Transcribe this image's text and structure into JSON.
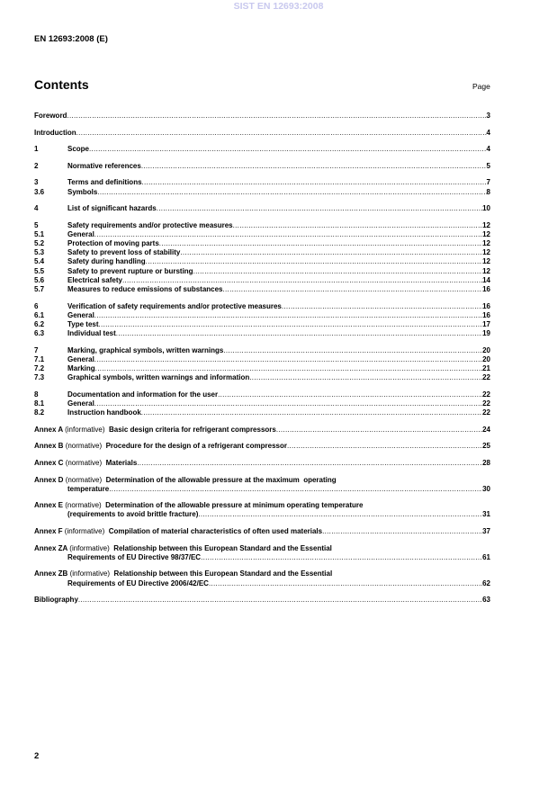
{
  "watermark": "SIST EN 12693:2008",
  "header": "EN 12693:2008 (E)",
  "contents_title": "Contents",
  "page_label": "Page",
  "groups": [
    {
      "entries": [
        {
          "num": "",
          "title": "Foreword",
          "page": "3"
        }
      ]
    },
    {
      "entries": [
        {
          "num": "",
          "title": "Introduction",
          "page": "4"
        }
      ]
    },
    {
      "entries": [
        {
          "num": "1",
          "title": "Scope",
          "page": "4"
        }
      ]
    },
    {
      "entries": [
        {
          "num": "2",
          "title": "Normative references",
          "page": "5"
        }
      ]
    },
    {
      "entries": [
        {
          "num": "3",
          "title": "Terms and definitions",
          "page": "7"
        },
        {
          "num": "3.6",
          "title": "Symbols",
          "page": "8"
        }
      ]
    },
    {
      "entries": [
        {
          "num": "4",
          "title": "List of significant hazards",
          "page": "10"
        }
      ]
    },
    {
      "entries": [
        {
          "num": "5",
          "title": "Safety requirements and/or protective measures",
          "page": "12"
        },
        {
          "num": "5.1",
          "title": "General",
          "page": "12"
        },
        {
          "num": "5.2",
          "title": "Protection of moving parts",
          "page": "12"
        },
        {
          "num": "5.3",
          "title": "Safety to prevent loss of stability",
          "page": "12"
        },
        {
          "num": "5.4",
          "title": "Safety during handling",
          "page": "12"
        },
        {
          "num": "5.5",
          "title": "Safety to prevent rupture or bursting",
          "page": "12"
        },
        {
          "num": "5.6",
          "title": "Electrical safety",
          "page": "14"
        },
        {
          "num": "5.7",
          "title": "Measures to reduce emissions of substances",
          "page": "16"
        }
      ]
    },
    {
      "entries": [
        {
          "num": "6",
          "title": "Verification of safety requirements and/or protective measures",
          "page": "16"
        },
        {
          "num": "6.1",
          "title": "General",
          "page": "16"
        },
        {
          "num": "6.2",
          "title": "Type test",
          "page": "17"
        },
        {
          "num": "6.3",
          "title": "Individual test",
          "page": "19"
        }
      ]
    },
    {
      "entries": [
        {
          "num": "7",
          "title": "Marking, graphical symbols, written warnings",
          "page": "20"
        },
        {
          "num": "7.1",
          "title": "General",
          "page": "20"
        },
        {
          "num": "7.2",
          "title": "Marking",
          "page": "21"
        },
        {
          "num": "7.3",
          "title": "Graphical symbols, written warnings and information",
          "page": "22"
        }
      ]
    },
    {
      "entries": [
        {
          "num": "8",
          "title": "Documentation and information for the user",
          "page": "22"
        },
        {
          "num": "8.1",
          "title": "General",
          "page": "22"
        },
        {
          "num": "8.2",
          "title": "Instruction handbook",
          "page": "22"
        }
      ]
    },
    {
      "entries": [
        {
          "label": "Annex A",
          "type": "(informative)",
          "title": "Basic design criteria for refrigerant compressors",
          "page": "24"
        }
      ]
    },
    {
      "entries": [
        {
          "label": "Annex B",
          "type": "(normative)",
          "title": "Procedure for the design of a refrigerant compressor",
          "page": "25"
        }
      ]
    },
    {
      "entries": [
        {
          "label": "Annex C",
          "type": "(normative)",
          "title": "Materials",
          "page": "28"
        }
      ]
    },
    {
      "entries": [
        {
          "label": "Annex D",
          "type": "(normative)",
          "title": "Determination of the allowable pressure at the maximum  operating",
          "cont": "temperature",
          "page": "30"
        }
      ]
    },
    {
      "entries": [
        {
          "label": "Annex E",
          "type": "(normative)",
          "title": "Determination of the allowable pressure at minimum operating temperature",
          "cont": "(requirements to avoid brittle fracture)",
          "page": "31"
        }
      ]
    },
    {
      "entries": [
        {
          "label": "Annex F",
          "type": "(informative)",
          "title": "Compilation of material characteristics of often used materials",
          "page": "37"
        }
      ]
    },
    {
      "entries": [
        {
          "label": "Annex ZA",
          "type": "(informative)",
          "title": "Relationship between this European Standard and the Essential",
          "cont": "Requirements of EU Directive 98/37/EC",
          "page": "61"
        }
      ]
    },
    {
      "entries": [
        {
          "label": "Annex ZB",
          "type": "(informative)",
          "title": "Relationship between this European Standard and the Essential",
          "cont": "Requirements  of EU Directive 2006/42/EC",
          "page": "62"
        }
      ]
    },
    {
      "entries": [
        {
          "num": "",
          "title": "Bibliography",
          "page": "63"
        }
      ]
    }
  ],
  "page_number": "2"
}
